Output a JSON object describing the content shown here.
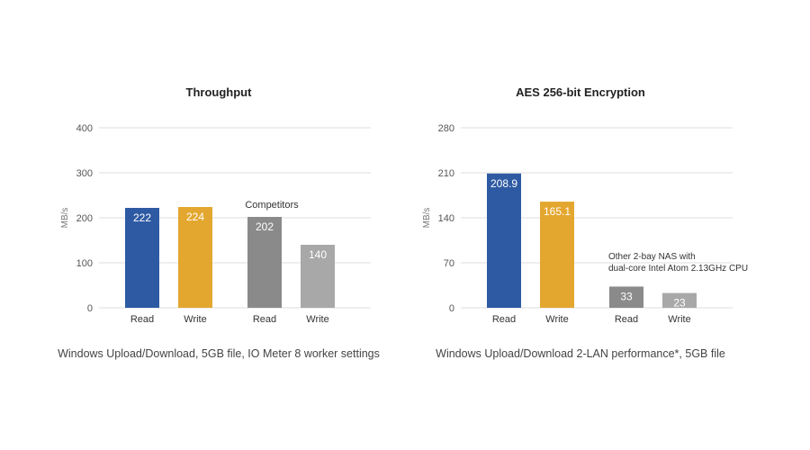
{
  "colors": {
    "read_blue": "#2e5aa3",
    "write_gold": "#e3a72f",
    "competitor_read": "#8a8a8a",
    "competitor_write": "#a8a8a8"
  },
  "chart_data": [
    {
      "type": "bar",
      "title": "Throughput",
      "ylabel": "MB/s",
      "ylim": [
        0,
        400
      ],
      "yticks": [
        "400",
        "300",
        "200",
        "100",
        "0"
      ],
      "ytick_values": [
        400,
        300,
        200,
        100,
        0
      ],
      "grid": true,
      "bars": [
        {
          "category": "Read",
          "value": 222,
          "label": "222",
          "color": "#2e5aa3"
        },
        {
          "category": "Write",
          "value": 224,
          "label": "224",
          "color": "#e3a72f"
        },
        {
          "category": "Read",
          "value": 202,
          "label": "202",
          "color": "#8a8a8a"
        },
        {
          "category": "Write",
          "value": 140,
          "label": "140",
          "color": "#a8a8a8"
        }
      ],
      "annotation": "Competitors",
      "caption": "Windows Upload/Download, 5GB file, IO Meter 8 worker settings"
    },
    {
      "type": "bar",
      "title": "AES 256-bit Encryption",
      "ylabel": "MB/s",
      "ylim": [
        0,
        280
      ],
      "yticks": [
        "280",
        "210",
        "140",
        "70",
        "0"
      ],
      "ytick_values": [
        280,
        210,
        140,
        70,
        0
      ],
      "grid": true,
      "bars": [
        {
          "category": "Read",
          "value": 208.9,
          "label": "208.9",
          "color": "#2e5aa3"
        },
        {
          "category": "Write",
          "value": 165.1,
          "label": "165.1",
          "color": "#e3a72f"
        },
        {
          "category": "Read",
          "value": 33,
          "label": "33",
          "color": "#8a8a8a"
        },
        {
          "category": "Write",
          "value": 23,
          "label": "23",
          "color": "#a8a8a8"
        }
      ],
      "annotation": "Other 2-bay NAS with",
      "annotation_line2": "dual-core Intel Atom 2.13GHz CPU",
      "caption": "Windows Upload/Download 2-LAN performance*, 5GB file"
    }
  ]
}
